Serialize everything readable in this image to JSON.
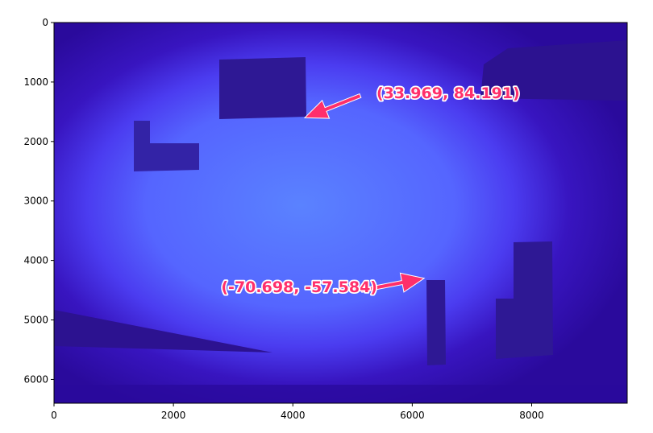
{
  "chart_data": {
    "type": "image",
    "title": "",
    "xlabel": "",
    "ylabel": "",
    "xlim": [
      0,
      9600
    ],
    "ylim": [
      6400,
      0
    ],
    "x_ticks": [
      0,
      2000,
      4000,
      6000,
      8000
    ],
    "y_ticks": [
      0,
      1000,
      2000,
      3000,
      4000,
      5000,
      6000
    ],
    "annotations": [
      {
        "text": "(33.969, 84.191)",
        "text_at": [
          5400,
          1270
        ],
        "arrow_to": [
          4200,
          1600
        ]
      },
      {
        "text": "(-70.698, -57.584)",
        "text_at": [
          2800,
          4530
        ],
        "arrow_to": [
          6200,
          4300
        ]
      }
    ],
    "colors": {
      "image_center": "#5a82ff",
      "image_edge": "#2a0a9c",
      "dark_shapes": "#2e1894",
      "annotation": "#ff2f6b",
      "annotation_outline": "#ffffff"
    }
  }
}
